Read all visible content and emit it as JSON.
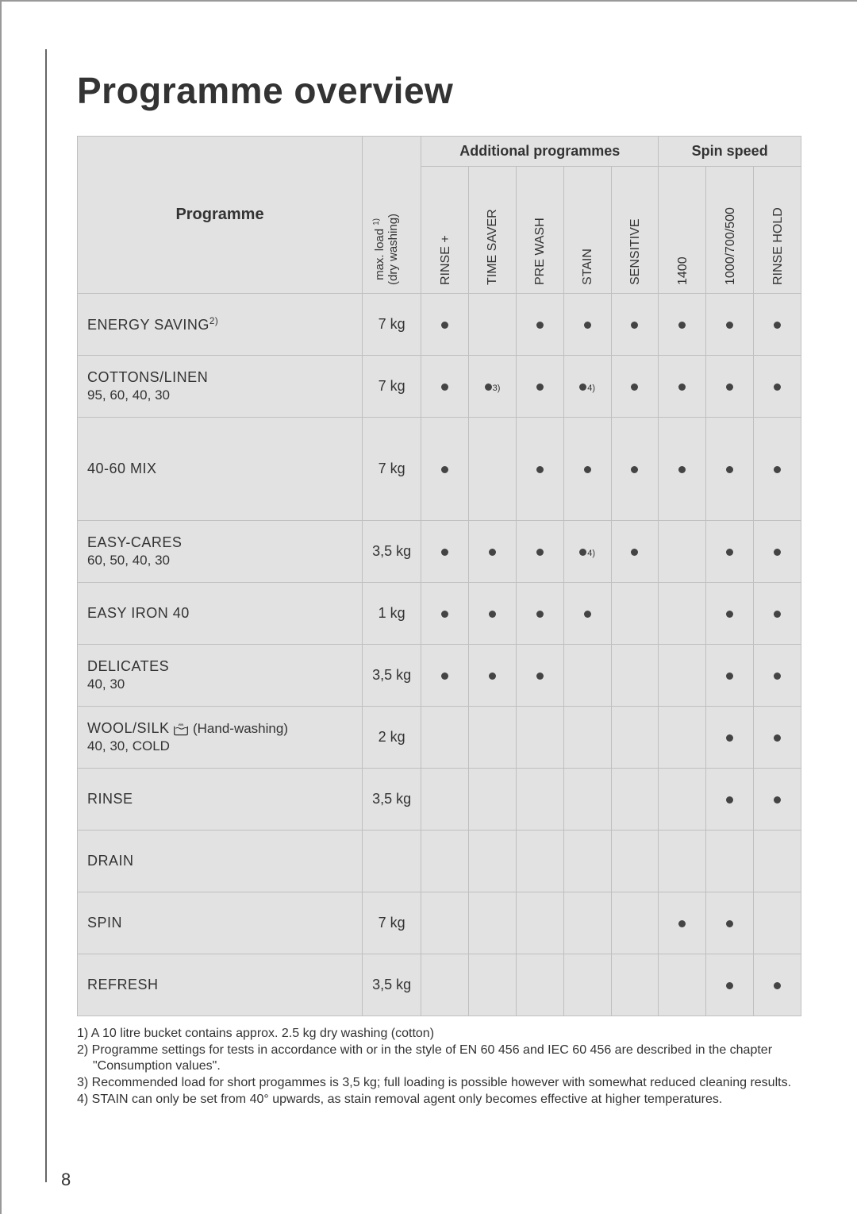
{
  "page": {
    "title": "Programme overview",
    "page_number": "8"
  },
  "table": {
    "header": {
      "programme": "Programme",
      "max_load": "max. load ",
      "max_load_sup": "1)",
      "max_load_sub": "(dry washing)",
      "group_additional": "Additional programmes",
      "group_spin": "Spin speed",
      "cols": {
        "rinse_plus": "RINSE +",
        "time_saver": "TIME SAVER",
        "pre_wash": "PRE WASH",
        "stain": "STAIN",
        "sensitive": "SENSITIVE",
        "s1400": "1400",
        "s1000": "1000/700/500",
        "rinse_hold": "RINSE HOLD"
      }
    },
    "rows": [
      {
        "name": "ENERGY SAVING",
        "name_sup": "2)",
        "sub": "",
        "load": "7 kg",
        "opts": {
          "rinse_plus": "•",
          "time_saver": "",
          "pre_wash": "•",
          "stain": "•",
          "sensitive": "•",
          "s1400": "•",
          "s1000": "•",
          "rinse_hold": "•"
        }
      },
      {
        "name": "COTTONS/LINEN",
        "sub": "95, 60, 40, 30",
        "load": "7 kg",
        "opts": {
          "rinse_plus": "•",
          "time_saver": "•3)",
          "pre_wash": "•",
          "stain": "•4)",
          "sensitive": "•",
          "s1400": "•",
          "s1000": "•",
          "rinse_hold": "•"
        }
      },
      {
        "name": "40-60 MIX",
        "sub": "",
        "load": "7 kg",
        "tall": true,
        "opts": {
          "rinse_plus": "•",
          "time_saver": "",
          "pre_wash": "•",
          "stain": "•",
          "sensitive": "•",
          "s1400": "•",
          "s1000": "•",
          "rinse_hold": "•"
        }
      },
      {
        "name": "EASY-CARES",
        "sub": "60, 50, 40, 30",
        "load": "3,5 kg",
        "opts": {
          "rinse_plus": "•",
          "time_saver": "•",
          "pre_wash": "•",
          "stain": "•4)",
          "sensitive": "•",
          "s1400": "",
          "s1000": "•",
          "rinse_hold": "•"
        }
      },
      {
        "name": "EASY IRON 40",
        "sub": "",
        "load": "1 kg",
        "opts": {
          "rinse_plus": "•",
          "time_saver": "•",
          "pre_wash": "•",
          "stain": "•",
          "sensitive": "",
          "s1400": "",
          "s1000": "•",
          "rinse_hold": "•"
        }
      },
      {
        "name": "DELICATES",
        "sub": "40, 30",
        "load": "3,5 kg",
        "opts": {
          "rinse_plus": "•",
          "time_saver": "•",
          "pre_wash": "•",
          "stain": "",
          "sensitive": "",
          "s1400": "",
          "s1000": "•",
          "rinse_hold": "•"
        }
      },
      {
        "name": "WOOL/SILK",
        "name_icon": true,
        "name_after": " (Hand-washing)",
        "sub": "40, 30, COLD",
        "load": "2 kg",
        "opts": {
          "rinse_plus": "",
          "time_saver": "",
          "pre_wash": "",
          "stain": "",
          "sensitive": "",
          "s1400": "",
          "s1000": "•",
          "rinse_hold": "•"
        }
      },
      {
        "name": "RINSE",
        "sub": "",
        "load": "3,5 kg",
        "opts": {
          "rinse_plus": "",
          "time_saver": "",
          "pre_wash": "",
          "stain": "",
          "sensitive": "",
          "s1400": "",
          "s1000": "•",
          "rinse_hold": "•"
        }
      },
      {
        "name": "DRAIN",
        "sub": "",
        "load": "",
        "opts": {
          "rinse_plus": "",
          "time_saver": "",
          "pre_wash": "",
          "stain": "",
          "sensitive": "",
          "s1400": "",
          "s1000": "",
          "rinse_hold": ""
        }
      },
      {
        "name": "SPIN",
        "sub": "",
        "load": "7 kg",
        "opts": {
          "rinse_plus": "",
          "time_saver": "",
          "pre_wash": "",
          "stain": "",
          "sensitive": "",
          "s1400": "•",
          "s1000": "•",
          "rinse_hold": ""
        }
      },
      {
        "name": "REFRESH",
        "sub": "",
        "load": "3,5 kg",
        "opts": {
          "rinse_plus": "",
          "time_saver": "",
          "pre_wash": "",
          "stain": "",
          "sensitive": "",
          "s1400": "",
          "s1000": "•",
          "rinse_hold": "•"
        }
      }
    ]
  },
  "footnotes": [
    "1) A 10 litre bucket contains approx. 2.5 kg dry washing (cotton)",
    "2) Programme settings for tests in accordance with or in the style of EN 60 456 and IEC 60 456 are described in the chapter \"Consumption values\".",
    "3) Recommended load for short progammes is 3,5 kg; full loading is possible however with somewhat reduced cleaning results.",
    "4) STAIN can only be set from 40° upwards, as stain removal agent only becomes effective at higher temperatures."
  ]
}
